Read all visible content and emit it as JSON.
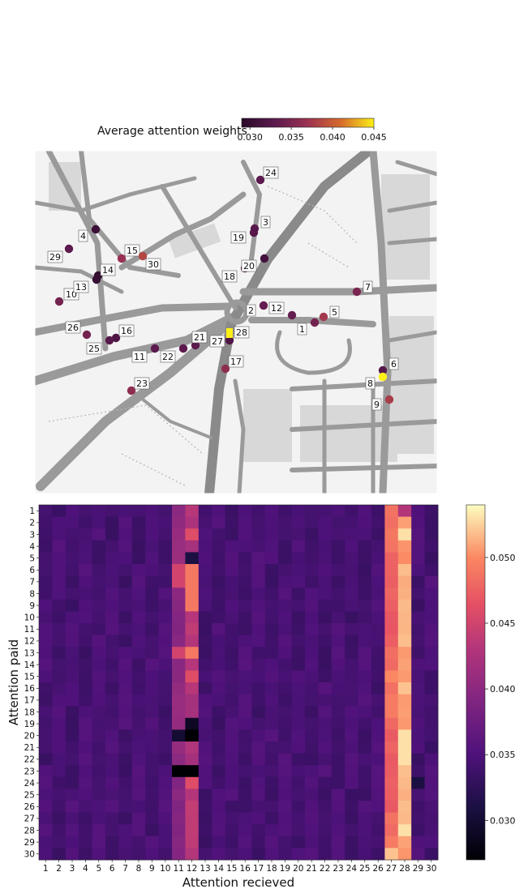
{
  "chart_data": [
    {
      "type": "scatter",
      "subtype": "map-overlay",
      "colorbar": {
        "title": "Average attention weights",
        "colormap": "inferno",
        "range": [
          0.029,
          0.045
        ],
        "ticks": [
          "0.030",
          "0.035",
          "0.040",
          "0.045"
        ],
        "tick_values": [
          0.03,
          0.035,
          0.04,
          0.045
        ],
        "orientation": "horizontal",
        "placement": "top"
      },
      "points": [
        {
          "label": "1",
          "value": 0.0345
        },
        {
          "label": "2",
          "value": 0.0335
        },
        {
          "label": "3",
          "value": 0.0328
        },
        {
          "label": "4",
          "value": 0.0305
        },
        {
          "label": "5",
          "value": 0.0375
        },
        {
          "label": "6",
          "value": 0.0325
        },
        {
          "label": "7",
          "value": 0.0348
        },
        {
          "label": "8",
          "value": 0.0452
        },
        {
          "label": "9",
          "value": 0.0378
        },
        {
          "label": "10",
          "value": 0.0345
        },
        {
          "label": "11",
          "value": 0.033
        },
        {
          "label": "12",
          "value": 0.0335
        },
        {
          "label": "13",
          "value": 0.03
        },
        {
          "label": "14",
          "value": 0.03
        },
        {
          "label": "15",
          "value": 0.0368
        },
        {
          "label": "16",
          "value": 0.0318
        },
        {
          "label": "17",
          "value": 0.0362
        },
        {
          "label": "18",
          "value": 0.033
        },
        {
          "label": "19",
          "value": 0.0325
        },
        {
          "label": "20",
          "value": 0.031
        },
        {
          "label": "21",
          "value": 0.033
        },
        {
          "label": "22",
          "value": 0.033
        },
        {
          "label": "23",
          "value": 0.0362
        },
        {
          "label": "24",
          "value": 0.033
        },
        {
          "label": "25",
          "value": 0.0325
        },
        {
          "label": "26",
          "value": 0.0345
        },
        {
          "label": "27",
          "value": 0.032
        },
        {
          "label": "28",
          "value": 0.045
        },
        {
          "label": "29",
          "value": 0.033
        },
        {
          "label": "30",
          "value": 0.0385
        }
      ]
    },
    {
      "type": "heatmap",
      "xlabel": "Attention recieved",
      "ylabel": "Attention paid",
      "x_categories": [
        "1",
        "2",
        "3",
        "4",
        "5",
        "6",
        "7",
        "8",
        "9",
        "10",
        "11",
        "12",
        "13",
        "14",
        "15",
        "16",
        "17",
        "18",
        "19",
        "20",
        "21",
        "22",
        "23",
        "24",
        "25",
        "26",
        "27",
        "28",
        "29",
        "30"
      ],
      "y_categories": [
        "1",
        "2",
        "3",
        "4",
        "5",
        "6",
        "7",
        "8",
        "9",
        "10",
        "11",
        "12",
        "13",
        "14",
        "15",
        "16",
        "17",
        "18",
        "19",
        "20",
        "21",
        "22",
        "23",
        "24",
        "25",
        "26",
        "27",
        "28",
        "29",
        "30"
      ],
      "colormap": "magma",
      "range": [
        0.027,
        0.054
      ],
      "colorbar": {
        "ticks": [
          "0.030",
          "0.035",
          "0.040",
          "0.045",
          "0.050"
        ],
        "tick_values": [
          0.03,
          0.035,
          0.04,
          0.045,
          0.05
        ],
        "placement": "right"
      },
      "base_value": 0.0345,
      "column_values": {
        "11": 0.04,
        "12": 0.043,
        "27": 0.048,
        "28": 0.051
      },
      "cell_overrides": [
        {
          "row": "1",
          "col": "28",
          "value": 0.043
        },
        {
          "row": "3",
          "col": "28",
          "value": 0.053
        },
        {
          "row": "3",
          "col": "12",
          "value": 0.046
        },
        {
          "row": "5",
          "col": "12",
          "value": 0.031
        },
        {
          "row": "6",
          "col": "12",
          "value": 0.049
        },
        {
          "row": "6",
          "col": "11",
          "value": 0.045
        },
        {
          "row": "7",
          "col": "11",
          "value": 0.045
        },
        {
          "row": "7",
          "col": "12",
          "value": 0.049
        },
        {
          "row": "8",
          "col": "12",
          "value": 0.049
        },
        {
          "row": "9",
          "col": "12",
          "value": 0.049
        },
        {
          "row": "13",
          "col": "12",
          "value": 0.049
        },
        {
          "row": "13",
          "col": "11",
          "value": 0.045
        },
        {
          "row": "15",
          "col": "12",
          "value": 0.046
        },
        {
          "row": "15",
          "col": "27",
          "value": 0.05
        },
        {
          "row": "16",
          "col": "28",
          "value": 0.052
        },
        {
          "row": "19",
          "col": "12",
          "value": 0.029
        },
        {
          "row": "20",
          "col": "12",
          "value": 0.027
        },
        {
          "row": "20",
          "col": "11",
          "value": 0.03
        },
        {
          "row": "20",
          "col": "28",
          "value": 0.053
        },
        {
          "row": "21",
          "col": "28",
          "value": 0.053
        },
        {
          "row": "22",
          "col": "28",
          "value": 0.053
        },
        {
          "row": "23",
          "col": "11",
          "value": 0.027
        },
        {
          "row": "23",
          "col": "12",
          "value": 0.027
        },
        {
          "row": "24",
          "col": "12",
          "value": 0.046
        },
        {
          "row": "24",
          "col": "29",
          "value": 0.031
        },
        {
          "row": "28",
          "col": "28",
          "value": 0.053
        },
        {
          "row": "30",
          "col": "27",
          "value": 0.052
        }
      ]
    }
  ]
}
